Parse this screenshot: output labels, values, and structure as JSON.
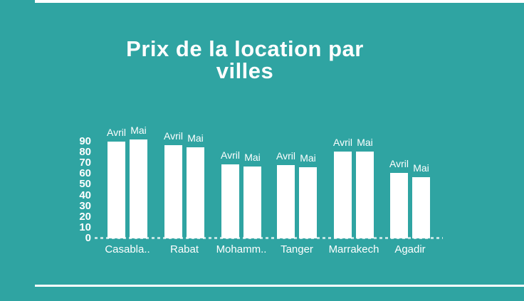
{
  "page": {
    "background_color": "#2fa4a2",
    "divider_color": "#ffffff"
  },
  "title": {
    "line1": "Prix de la location par",
    "line2": "villes",
    "color": "#ffffff"
  },
  "chart_data": {
    "type": "bar",
    "title": "Prix de la location par villes",
    "categories": [
      "Casabla..",
      "Rabat",
      "Mohamm..",
      "Tanger",
      "Marrakech",
      "Agadir"
    ],
    "series": [
      {
        "name": "Avril",
        "values": [
          90,
          87,
          69,
          68,
          81,
          61
        ]
      },
      {
        "name": "Mai",
        "values": [
          92,
          85,
          67,
          66,
          81,
          57
        ]
      }
    ],
    "y_ticks": [
      0,
      10,
      20,
      30,
      40,
      50,
      60,
      70,
      80,
      90
    ],
    "ylim": [
      0,
      97
    ],
    "xlabel": "",
    "ylabel": "",
    "bar_color": "#ffffff",
    "text_color": "#ffffff",
    "baseline_color": "rgba(255,255,255,0.7)",
    "grid": false,
    "legend_position": "labels-above-bars"
  }
}
